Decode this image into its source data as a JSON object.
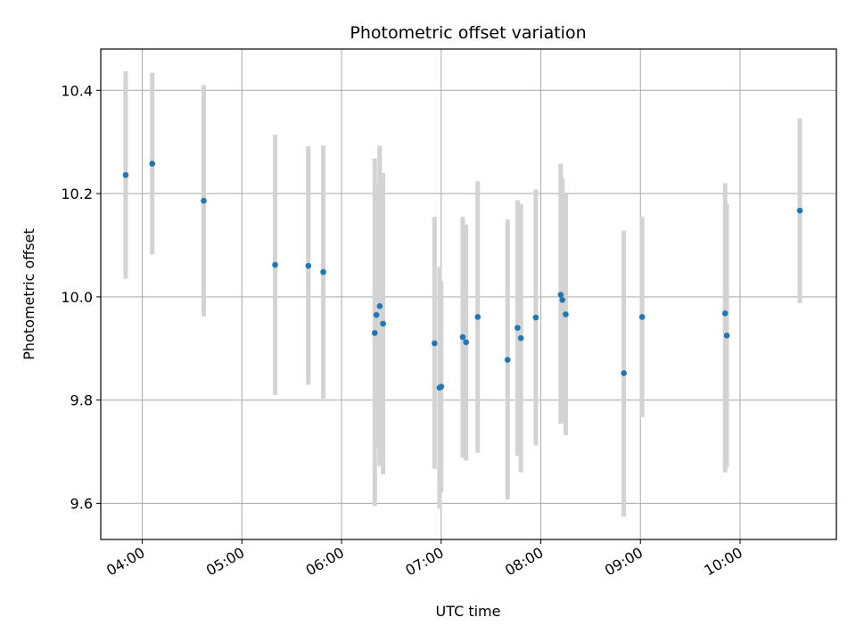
{
  "chart_data": {
    "type": "scatter",
    "title": "Photometric offset variation",
    "xlabel": "UTC time",
    "ylabel": "Photometric offset",
    "x_unit": "UTC time (HH:MM)",
    "xlim": [
      "03:35",
      "10:58"
    ],
    "ylim": [
      9.53,
      10.48
    ],
    "xticks": [
      "04:00",
      "05:00",
      "06:00",
      "07:00",
      "08:00",
      "09:00",
      "10:00"
    ],
    "yticks": [
      9.6,
      9.8,
      10.0,
      10.2,
      10.4
    ],
    "grid": true,
    "marker_color": "#1f77b4",
    "errorbar_color": "#d3d3d3",
    "series": [
      {
        "points": [
          {
            "x": "03:50",
            "y": 10.236,
            "ylow": 10.035,
            "yhigh": 10.437
          },
          {
            "x": "04:06",
            "y": 10.258,
            "ylow": 10.082,
            "yhigh": 10.434
          },
          {
            "x": "04:37",
            "y": 10.186,
            "ylow": 9.962,
            "yhigh": 10.41
          },
          {
            "x": "05:20",
            "y": 10.062,
            "ylow": 9.81,
            "yhigh": 10.314
          },
          {
            "x": "05:40",
            "y": 10.06,
            "ylow": 9.83,
            "yhigh": 10.292
          },
          {
            "x": "05:49",
            "y": 10.048,
            "ylow": 9.803,
            "yhigh": 10.293
          },
          {
            "x": "06:20",
            "y": 9.93,
            "ylow": 9.595,
            "yhigh": 10.268
          },
          {
            "x": "06:21",
            "y": 9.965,
            "ylow": 9.71,
            "yhigh": 10.22
          },
          {
            "x": "06:23",
            "y": 9.982,
            "ylow": 9.672,
            "yhigh": 10.293
          },
          {
            "x": "06:25",
            "y": 9.948,
            "ylow": 9.656,
            "yhigh": 10.24
          },
          {
            "x": "06:56",
            "y": 9.91,
            "ylow": 9.667,
            "yhigh": 10.155
          },
          {
            "x": "06:59",
            "y": 9.824,
            "ylow": 9.59,
            "yhigh": 10.058
          },
          {
            "x": "07:00",
            "y": 9.826,
            "ylow": 9.622,
            "yhigh": 10.031
          },
          {
            "x": "07:13",
            "y": 9.922,
            "ylow": 9.688,
            "yhigh": 10.155
          },
          {
            "x": "07:15",
            "y": 9.912,
            "ylow": 9.683,
            "yhigh": 10.14
          },
          {
            "x": "07:22",
            "y": 9.961,
            "ylow": 9.698,
            "yhigh": 10.224
          },
          {
            "x": "07:40",
            "y": 9.878,
            "ylow": 9.607,
            "yhigh": 10.15
          },
          {
            "x": "07:46",
            "y": 9.94,
            "ylow": 9.692,
            "yhigh": 10.187
          },
          {
            "x": "07:48",
            "y": 9.92,
            "ylow": 9.66,
            "yhigh": 10.18
          },
          {
            "x": "07:57",
            "y": 9.96,
            "ylow": 9.712,
            "yhigh": 10.208
          },
          {
            "x": "08:12",
            "y": 10.004,
            "ylow": 9.754,
            "yhigh": 10.258
          },
          {
            "x": "08:13",
            "y": 9.994,
            "ylow": 9.758,
            "yhigh": 10.23
          },
          {
            "x": "08:15",
            "y": 9.966,
            "ylow": 9.732,
            "yhigh": 10.2
          },
          {
            "x": "08:50",
            "y": 9.852,
            "ylow": 9.574,
            "yhigh": 10.128
          },
          {
            "x": "09:01",
            "y": 9.961,
            "ylow": 9.767,
            "yhigh": 10.155
          },
          {
            "x": "09:51",
            "y": 9.968,
            "ylow": 9.66,
            "yhigh": 10.22
          },
          {
            "x": "09:52",
            "y": 9.925,
            "ylow": 9.67,
            "yhigh": 10.18
          },
          {
            "x": "10:36",
            "y": 10.167,
            "ylow": 9.988,
            "yhigh": 10.346
          }
        ]
      }
    ]
  }
}
